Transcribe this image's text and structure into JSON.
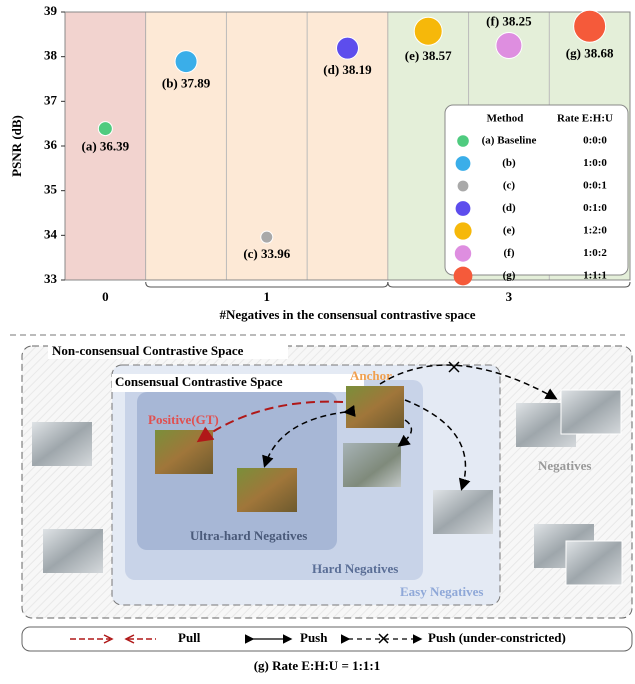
{
  "chart_data": {
    "type": "scatter",
    "y_label": "PSNR (dB)",
    "x_label": "#Negatives in the consensual contrastive space",
    "ylim": [
      33,
      39
    ],
    "yticks": [
      33,
      34,
      35,
      36,
      37,
      38,
      39
    ],
    "xticks": [
      0,
      1,
      3
    ],
    "region_colors": [
      "#f2d3cf",
      "#fde9d6",
      "#e4efd9"
    ],
    "legend_header": [
      "Method",
      "Rate E:H:U"
    ],
    "legend": "lower right",
    "series": [
      {
        "name": "(a) Baseline",
        "rate": "0:0:0",
        "color": "#4fcb7f",
        "x": 0,
        "values": [
          36.39
        ],
        "value_labels": [
          "(a) 36.39"
        ],
        "size": 7
      },
      {
        "name": "(b)",
        "rate": "1:0:0",
        "color": "#3aaee9",
        "x": 1,
        "values": [
          37.89
        ],
        "value_labels": [
          "(b) 37.89"
        ],
        "size": 11
      },
      {
        "name": "(c)",
        "rate": "0:0:1",
        "color": "#a9a9a9",
        "x": 1,
        "values": [
          33.96
        ],
        "value_labels": [
          "(c) 33.96"
        ],
        "size": 6
      },
      {
        "name": "(d)",
        "rate": "0:1:0",
        "color": "#5d4ded",
        "x": 1,
        "values": [
          38.19
        ],
        "value_labels": [
          "(d) 38.19"
        ],
        "size": 11
      },
      {
        "name": "(e)",
        "rate": "1:2:0",
        "color": "#f6b80a",
        "x": 3,
        "values": [
          38.57
        ],
        "value_labels": [
          "(e) 38.57"
        ],
        "size": 14
      },
      {
        "name": "(f)",
        "rate": "1:0:2",
        "color": "#de8ee0",
        "x": 3,
        "values": [
          38.25
        ],
        "value_labels": [
          "(f) 38.25"
        ],
        "size": 13
      },
      {
        "name": "(g)",
        "rate": "1:1:1",
        "color": "#f55a3a",
        "x": 3,
        "values": [
          38.68
        ],
        "value_labels": [
          "(g) 38.68"
        ],
        "size": 16
      }
    ]
  },
  "diagram": {
    "non_consensual": "Non-consensual Contrastive Space",
    "consensual": "Consensual Contrastive Space",
    "anchor": "Anchor",
    "positive": "Positive(GT)",
    "ultra_hard": "Ultra-hard Negatives",
    "hard": "Hard Negatives",
    "easy": "Easy Negatives",
    "negatives": "Negatives",
    "legend": [
      "Pull",
      "Push",
      "Push (under-constricted)"
    ],
    "caption": "(g) Rate E:H:U = 1:1:1"
  }
}
